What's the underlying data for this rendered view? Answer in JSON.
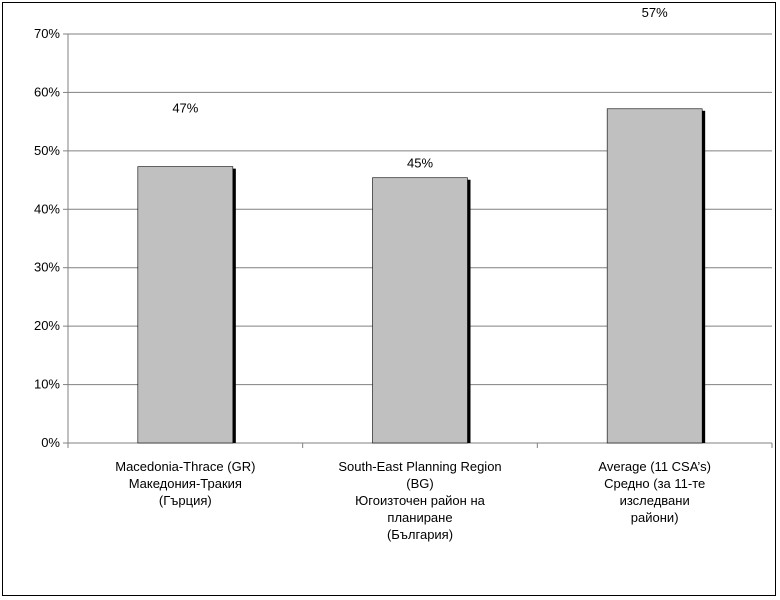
{
  "chart_data": {
    "type": "bar",
    "categories": [
      [
        "Macedonia-Thrace (GR)",
        "Македония-Тракия",
        "(Гърция)"
      ],
      [
        "South-East Planning Region",
        "(BG)",
        "Югоизточен район на",
        "планиране",
        "(България)"
      ],
      [
        "Average (11 CSA’s)",
        "Средно (за 11-те",
        "изследвани",
        "райони)"
      ]
    ],
    "values": [
      47.3,
      45.4,
      57.2
    ],
    "data_labels": [
      "47%",
      "45%",
      "57%"
    ],
    "y_ticks": [
      "0%",
      "10%",
      "20%",
      "30%",
      "40%",
      "50%",
      "60%",
      "70%"
    ],
    "ylim": [
      0,
      70
    ],
    "grid": true,
    "colors": {
      "bar_fill": "#c0c0c0",
      "bar_stroke": "#000000",
      "bar_shadow": "#000000",
      "grid": "#808080",
      "axis": "#808080"
    }
  }
}
